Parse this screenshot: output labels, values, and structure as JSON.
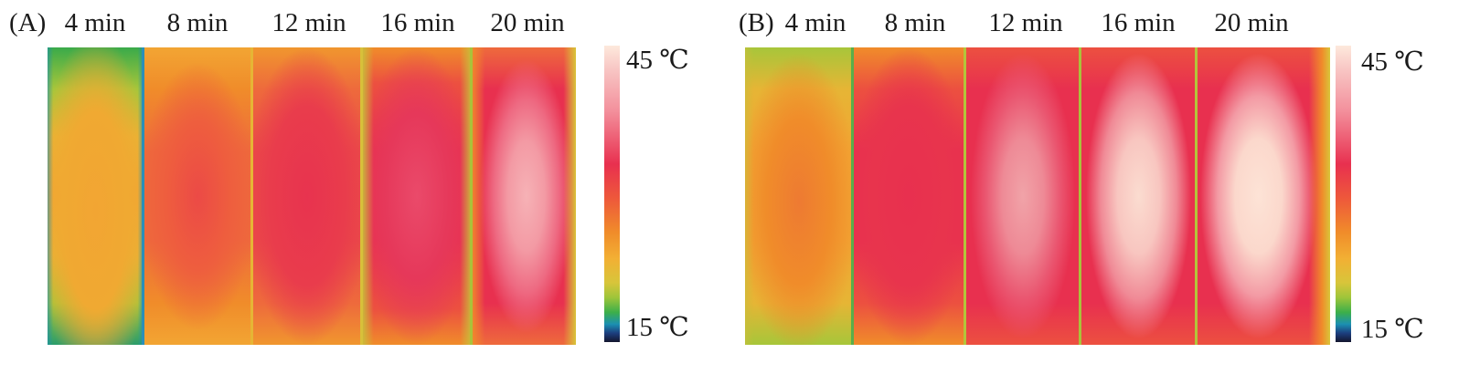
{
  "panels": [
    {
      "label": "(A)",
      "times": [
        "4 min",
        "8 min",
        "12 min",
        "16 min",
        "20 min"
      ],
      "scale": {
        "max": "45 ℃",
        "min": "15 ℃"
      }
    },
    {
      "label": "(B)",
      "times": [
        "4 min",
        "8 min",
        "12 min",
        "16 min",
        "20 min"
      ],
      "scale": {
        "max": "45 ℃",
        "min": "15 ℃"
      }
    }
  ],
  "colors": {
    "hot_white": "#fde3d6",
    "pink": "#f4919e",
    "red": "#e8304f",
    "orange": "#f08c2a",
    "amber": "#f2a533",
    "green": "#3caf4a",
    "blue": "#1b8fb2",
    "navy": "#14162e"
  }
}
